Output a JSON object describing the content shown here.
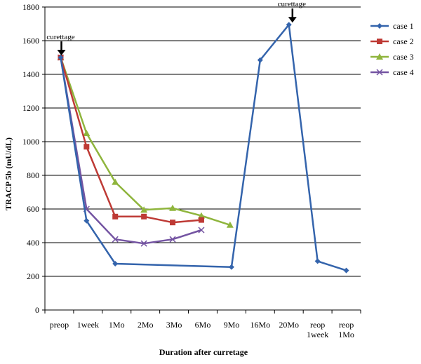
{
  "chart_data": {
    "type": "line",
    "title": "",
    "xlabel": "Duration after curretage",
    "ylabel": "TRACP 5b (mU/dL)",
    "ylim": [
      0,
      1800
    ],
    "yticks": [
      0,
      200,
      400,
      600,
      800,
      1000,
      1200,
      1400,
      1600,
      1800
    ],
    "grid": "horizontal",
    "legend_position": "right",
    "categories": [
      {
        "line1": "preop",
        "line2": ""
      },
      {
        "line1": "1week",
        "line2": ""
      },
      {
        "line1": "1Mo",
        "line2": ""
      },
      {
        "line1": "2Mo",
        "line2": ""
      },
      {
        "line1": "3Mo",
        "line2": ""
      },
      {
        "line1": "6Mo",
        "line2": ""
      },
      {
        "line1": "9Mo",
        "line2": ""
      },
      {
        "line1": "16Mo",
        "line2": ""
      },
      {
        "line1": "20Mo",
        "line2": ""
      },
      {
        "line1": "reop",
        "line2": "1week"
      },
      {
        "line1": "reop",
        "line2": "1Mo"
      }
    ],
    "series": [
      {
        "name": "case 1",
        "color": "#3464AC",
        "marker": "diamond",
        "points": [
          {
            "x": 0.55,
            "y": 1500
          },
          {
            "x": 1.45,
            "y": 530
          },
          {
            "x": 2.45,
            "y": 275
          },
          {
            "x": 6.5,
            "y": 255
          },
          {
            "x": 7.5,
            "y": 1485
          },
          {
            "x": 8.5,
            "y": 1695
          },
          {
            "x": 9.5,
            "y": 290
          },
          {
            "x": 10.5,
            "y": 235
          }
        ]
      },
      {
        "name": "case 2",
        "color": "#BE3A35",
        "marker": "square",
        "points": [
          {
            "x": 0.55,
            "y": 1500
          },
          {
            "x": 1.45,
            "y": 970
          },
          {
            "x": 2.45,
            "y": 555
          },
          {
            "x": 3.45,
            "y": 555
          },
          {
            "x": 4.45,
            "y": 520
          },
          {
            "x": 5.45,
            "y": 535
          }
        ]
      },
      {
        "name": "case 3",
        "color": "#8FB53D",
        "marker": "triangle",
        "points": [
          {
            "x": 0.55,
            "y": 1500
          },
          {
            "x": 1.45,
            "y": 1050
          },
          {
            "x": 2.45,
            "y": 760
          },
          {
            "x": 3.45,
            "y": 595
          },
          {
            "x": 4.45,
            "y": 605
          },
          {
            "x": 5.45,
            "y": 560
          },
          {
            "x": 6.45,
            "y": 505
          }
        ]
      },
      {
        "name": "case 4",
        "color": "#7454A2",
        "marker": "x",
        "points": [
          {
            "x": 0.55,
            "y": 1500
          },
          {
            "x": 1.45,
            "y": 600
          },
          {
            "x": 2.45,
            "y": 420
          },
          {
            "x": 3.45,
            "y": 395
          },
          {
            "x": 4.45,
            "y": 420
          },
          {
            "x": 5.45,
            "y": 475
          }
        ]
      }
    ],
    "annotations": [
      {
        "text": "curettage",
        "x": 0.55,
        "y": 1500,
        "arrow": "down"
      },
      {
        "text": "curettage",
        "x": 8.6,
        "y": 1695,
        "arrow": "down"
      }
    ]
  }
}
